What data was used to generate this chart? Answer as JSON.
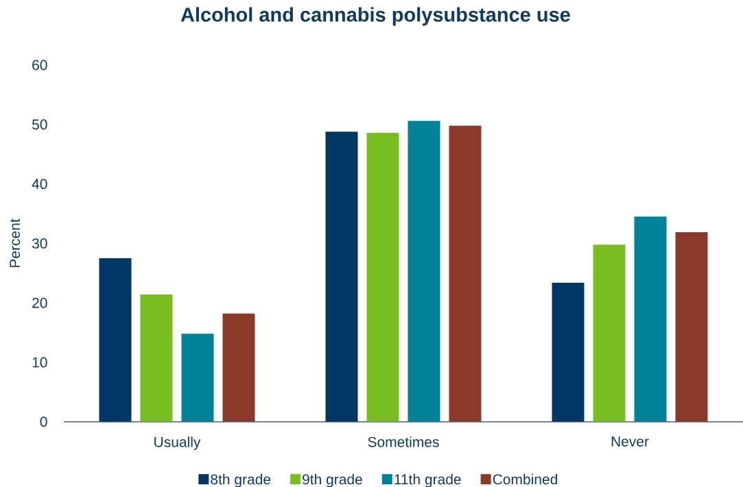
{
  "chart_data": {
    "type": "bar",
    "title": "Alcohol and cannabis polysubstance use",
    "ylabel": "Percent",
    "categories": [
      "Usually",
      "Sometimes",
      "Never"
    ],
    "series": [
      {
        "name": "8th grade",
        "color": "#003865",
        "values": [
          27.5,
          48.8,
          23.4
        ]
      },
      {
        "name": "9th grade",
        "color": "#78be20",
        "values": [
          21.4,
          48.6,
          29.8
        ]
      },
      {
        "name": "11th grade",
        "color": "#00829b",
        "values": [
          14.8,
          50.6,
          34.5
        ]
      },
      {
        "name": "Combined",
        "color": "#8b3a2a",
        "values": [
          18.2,
          49.8,
          31.9
        ]
      }
    ],
    "ylim": [
      0,
      60
    ],
    "yticks": [
      0,
      10,
      20,
      30,
      40,
      50,
      60
    ],
    "grid": false,
    "legend": "bottom"
  }
}
